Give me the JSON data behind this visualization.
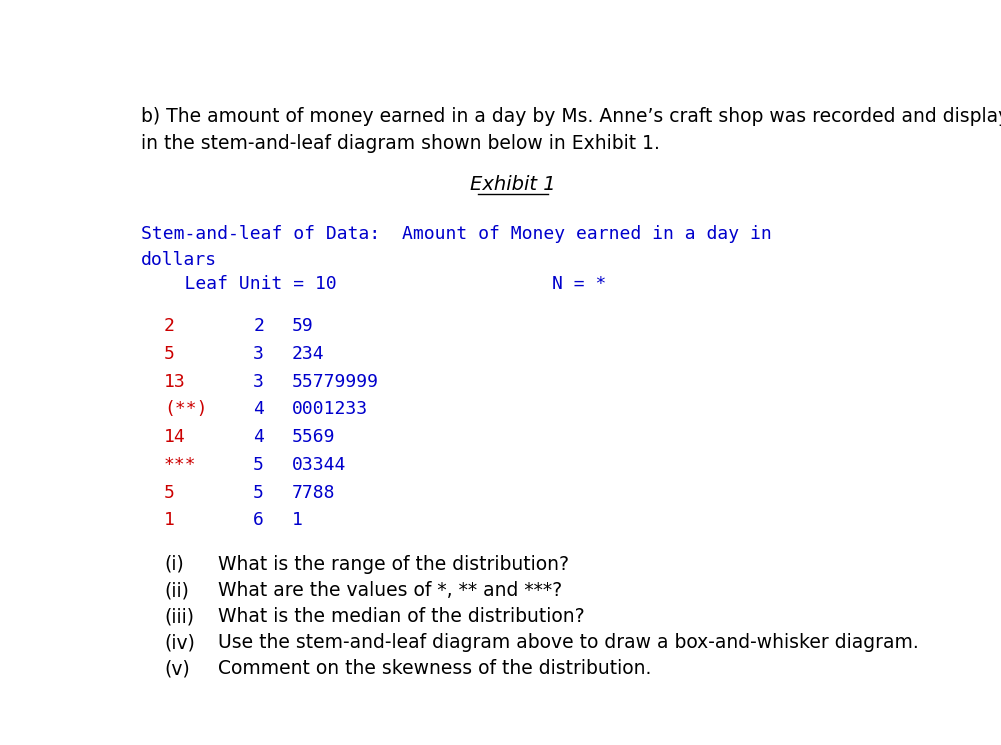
{
  "background_color": "#ffffff",
  "intro_text_line1": "b) The amount of money earned in a day by Ms. Anne’s craft shop was recorded and displayed",
  "intro_text_line2": "in the stem-and-leaf diagram shown below in Exhibit 1.",
  "exhibit_title": "Exhibit 1",
  "stem_header_line1": "Stem-and-leaf of Data:  Amount of Money earned in a day in",
  "stem_header_line2": "dollars",
  "leaf_unit_left": "    Leaf Unit = 10",
  "leaf_unit_right": "N = *",
  "stem_color": "#0000cc",
  "stem_rows": [
    {
      "depth": "2",
      "stem": "2",
      "leaves": "59"
    },
    {
      "depth": "5",
      "stem": "3",
      "leaves": "234"
    },
    {
      "depth": "13",
      "stem": "3",
      "leaves": "55779999"
    },
    {
      "depth": "(**)",
      "stem": "4",
      "leaves": "0001233"
    },
    {
      "depth": "14",
      "stem": "4",
      "leaves": "5569"
    },
    {
      "depth": "***",
      "stem": "5",
      "leaves": "03344"
    },
    {
      "depth": "5",
      "stem": "5",
      "leaves": "7788"
    },
    {
      "depth": "1",
      "stem": "6",
      "leaves": "1"
    }
  ],
  "questions": [
    {
      "label": "(i)",
      "text": "What is the range of the distribution?"
    },
    {
      "label": "(ii)",
      "text": "What are the values of *, ** and ***?"
    },
    {
      "label": "(iii)",
      "text": "What is the median of the distribution?"
    },
    {
      "label": "(iv)",
      "text": "Use the stem-and-leaf diagram above to draw a box-and-whisker diagram."
    },
    {
      "label": "(v)",
      "text": "Comment on the skewness of the distribution."
    }
  ],
  "intro_fontsize": 13.5,
  "exhibit_fontsize": 14,
  "mono_fontsize": 13,
  "question_fontsize": 13.5,
  "text_color": "#000000",
  "red_color": "#cc0000"
}
